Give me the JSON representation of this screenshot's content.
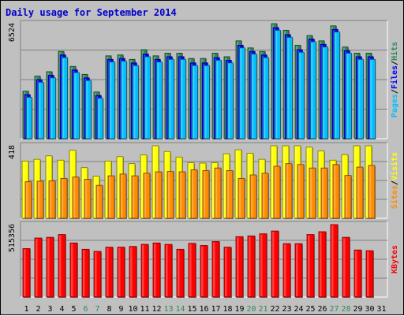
{
  "chart_data": {
    "type": "bar",
    "title": "Daily usage for September 2014",
    "categories": [
      "1",
      "2",
      "3",
      "4",
      "5",
      "6",
      "7",
      "8",
      "9",
      "10",
      "11",
      "12",
      "13",
      "14",
      "15",
      "16",
      "17",
      "18",
      "19",
      "20",
      "21",
      "22",
      "23",
      "24",
      "25",
      "26",
      "27",
      "28",
      "29",
      "30",
      "31"
    ],
    "weekend_days": [
      "6",
      "7",
      "13",
      "14",
      "20",
      "21",
      "27",
      "28"
    ],
    "panels": [
      {
        "id": "hits-files-pages",
        "max_label": "6524",
        "ylim": [
          0,
          6524
        ],
        "legend": [
          {
            "label": "Hits",
            "color": "#2e8b57"
          },
          {
            "label": "Files",
            "color": "#0000ff"
          },
          {
            "label": "Pages",
            "color": "#00bfff"
          }
        ],
        "series": [
          {
            "name": "Hits",
            "color": "#2e8b57",
            "values": [
              2700,
              3550,
              3800,
              4950,
              4100,
              3650,
              2650,
              4700,
              4750,
              4500,
              5050,
              4700,
              4850,
              4850,
              4550,
              4550,
              4850,
              4650,
              5550,
              5150,
              4950,
              6524,
              6150,
              5300,
              5850,
              5550,
              6400,
              5200,
              4850,
              4850,
              0
            ]
          },
          {
            "name": "Files",
            "color": "#0000ff",
            "values": [
              2500,
              3350,
              3600,
              4750,
              3900,
              3450,
              2450,
              4500,
              4550,
              4300,
              4800,
              4500,
              4650,
              4650,
              4300,
              4300,
              4600,
              4450,
              5300,
              4950,
              4750,
              6300,
              5900,
              5050,
              5650,
              5350,
              6200,
              5000,
              4650,
              4650,
              0
            ]
          },
          {
            "name": "Pages",
            "color": "#00bfff",
            "values": [
              2350,
              3200,
              3450,
              4600,
              3750,
              3300,
              2300,
              4350,
              4400,
              4150,
              4650,
              4350,
              4500,
              4500,
              4150,
              4150,
              4450,
              4300,
              5150,
              4800,
              4600,
              6150,
              5750,
              4900,
              5500,
              5200,
              6050,
              4850,
              4500,
              4500,
              0
            ]
          }
        ]
      },
      {
        "id": "visits-sites",
        "max_label": "418",
        "ylim": [
          0,
          418
        ],
        "legend": [
          {
            "label": "Visits",
            "color": "#ffff00"
          },
          {
            "label": "Sites",
            "color": "#ff8c00"
          }
        ],
        "series": [
          {
            "name": "Visits",
            "color": "#ffff00",
            "values": [
              330,
              340,
              360,
              335,
              392,
              292,
              243,
              330,
              355,
              315,
              365,
              418,
              385,
              353,
              320,
              318,
              320,
              372,
              395,
              375,
              340,
              418,
              418,
              418,
              410,
              388,
              335,
              367,
              418,
              418,
              0
            ]
          },
          {
            "name": "Sites",
            "color": "#ff8c00",
            "values": [
              211,
              214,
              216,
              230,
              238,
              225,
              190,
              245,
              255,
              245,
              260,
              268,
              270,
              268,
              280,
              275,
              290,
              275,
              230,
              250,
              260,
              300,
              315,
              310,
              290,
              290,
              310,
              247,
              295,
              305,
              0
            ]
          }
        ]
      },
      {
        "id": "kbytes",
        "max_label": "515356",
        "ylim": [
          0,
          515356
        ],
        "legend": [
          {
            "label": "KBytes",
            "color": "#ff0000"
          }
        ],
        "series": [
          {
            "name": "KBytes",
            "color": "#ff0000",
            "values": [
              345000,
              420000,
              425000,
              445000,
              385000,
              340000,
              325000,
              355000,
              355000,
              360000,
              375000,
              385000,
              375000,
              340000,
              382000,
              367000,
              395000,
              355000,
              430000,
              435000,
              450000,
              470000,
              380000,
              380000,
              445000,
              465000,
              515356,
              425000,
              335000,
              330000,
              0
            ]
          }
        ]
      }
    ]
  }
}
